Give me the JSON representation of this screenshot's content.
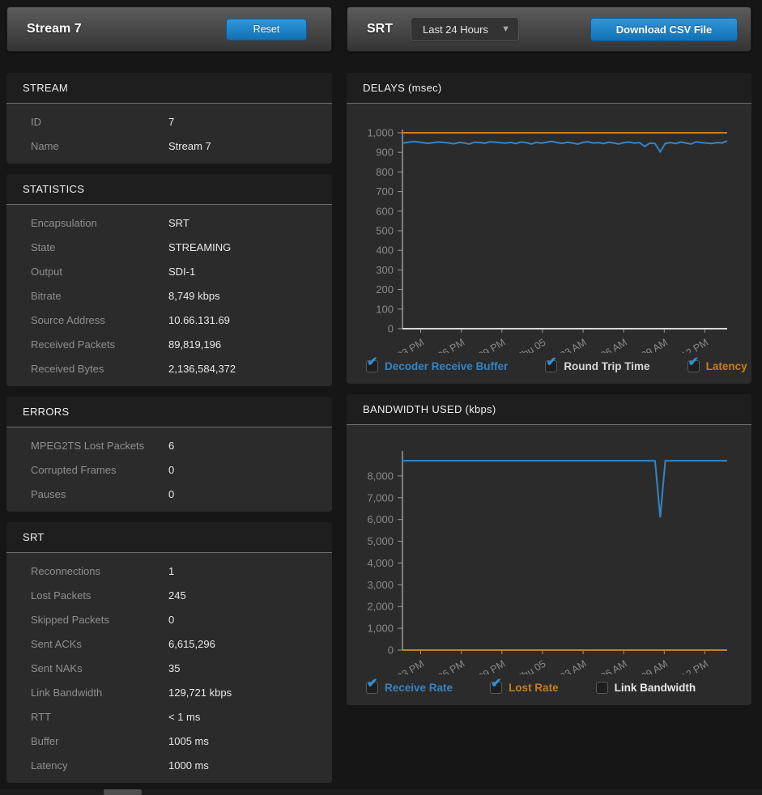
{
  "icons": {
    "checkbox_check": "✔",
    "caret_down": "▼"
  },
  "colors": {
    "page_background": "#161616",
    "panel_body": "#2b2b2b",
    "accent_blue": "#2f96dd",
    "series_blue": "#3584c4",
    "series_orange": "#c87d21",
    "series_white": "#d8d8d8",
    "axis": "#9a9a9a",
    "tick_label": "#8a8a8a"
  },
  "left_panel": {
    "header": {
      "title": "Stream 7",
      "reset_label": "Reset"
    },
    "sections": [
      {
        "title": "STREAM",
        "rows": [
          {
            "label": "ID",
            "value": "7"
          },
          {
            "label": "Name",
            "value": "Stream 7"
          }
        ]
      },
      {
        "title": "STATISTICS",
        "rows": [
          {
            "label": "Encapsulation",
            "value": "SRT"
          },
          {
            "label": "State",
            "value": "STREAMING"
          },
          {
            "label": "Output",
            "value": "SDI-1"
          },
          {
            "label": "Bitrate",
            "value": "8,749 kbps"
          },
          {
            "label": "Source Address",
            "value": "10.66.131.69"
          },
          {
            "label": "Received Packets",
            "value": "89,819,196"
          },
          {
            "label": "Received Bytes",
            "value": "2,136,584,372"
          }
        ]
      },
      {
        "title": "ERRORS",
        "rows": [
          {
            "label": "MPEG2TS Lost Packets",
            "value": "6"
          },
          {
            "label": "Corrupted Frames",
            "value": "0"
          },
          {
            "label": "Pauses",
            "value": "0"
          }
        ]
      },
      {
        "title": "SRT",
        "rows": [
          {
            "label": "Reconnections",
            "value": "1"
          },
          {
            "label": "Lost Packets",
            "value": "245"
          },
          {
            "label": "Skipped Packets",
            "value": "0"
          },
          {
            "label": "Sent ACKs",
            "value": "6,615,296"
          },
          {
            "label": "Sent NAKs",
            "value": "35"
          },
          {
            "label": "Link Bandwidth",
            "value": "129,721 kbps"
          },
          {
            "label": "RTT",
            "value": "< 1 ms"
          },
          {
            "label": "Buffer",
            "value": "1005 ms"
          },
          {
            "label": "Latency",
            "value": "1000 ms"
          }
        ]
      }
    ]
  },
  "right_panel": {
    "header": {
      "title": "SRT",
      "range_value": "Last 24 Hours",
      "download_label": "Download CSV File"
    }
  },
  "chart_data": [
    {
      "type": "line",
      "title": "DELAYS (msec)",
      "ylabel": "msec",
      "ylim": [
        0,
        1000
      ],
      "ytick_step": 100,
      "ytick_max": 1000,
      "grid": false,
      "legend_position": "bottom",
      "x_range": "Last 24 Hours",
      "x_tick_labels": [
        "03 PM",
        "06 PM",
        "09 PM",
        "Thu 05",
        "03 AM",
        "06 AM",
        "09 AM",
        "12 PM"
      ],
      "series": [
        {
          "name": "Decoder Receive Buffer",
          "color": "#3584c4",
          "checked": true,
          "values": [
            947,
            951,
            955,
            953,
            949,
            946,
            950,
            953,
            951,
            948,
            944,
            951,
            948,
            943,
            952,
            950,
            947,
            954,
            952,
            949,
            947,
            951,
            945,
            953,
            950,
            943,
            951,
            947,
            952,
            956,
            950,
            946,
            952,
            948,
            942,
            951,
            954,
            948,
            950,
            945,
            952,
            948,
            943,
            950,
            953,
            947,
            950,
            930,
            947,
            945,
            903,
            946,
            950,
            945,
            953,
            948,
            943,
            954,
            950,
            947,
            945,
            950,
            948,
            958
          ]
        },
        {
          "name": "Round Trip Time",
          "color": "#d8d8d8",
          "checked": true,
          "values_constant": 0
        },
        {
          "name": "Latency",
          "color": "#c87d21",
          "checked": true,
          "values_constant": 1000
        }
      ]
    },
    {
      "type": "line",
      "title": "BANDWIDTH USED (kbps)",
      "ylabel": "kbps",
      "ylim": [
        0,
        9000
      ],
      "ytick_step": 1000,
      "ytick_max": 8000,
      "grid": false,
      "legend_position": "bottom",
      "x_range": "Last 24 Hours",
      "x_tick_labels": [
        "03 PM",
        "06 PM",
        "09 PM",
        "Thu 05",
        "03 AM",
        "06 AM",
        "09 AM",
        "12 PM"
      ],
      "series": [
        {
          "name": "Receive Rate",
          "color": "#3584c4",
          "checked": true,
          "values": [
            8700,
            8700,
            8700,
            8700,
            8700,
            8700,
            8700,
            8700,
            8700,
            8700,
            8700,
            8700,
            8700,
            8700,
            8700,
            8700,
            8700,
            8700,
            8700,
            8700,
            8700,
            8700,
            8700,
            8700,
            8700,
            8700,
            8700,
            8700,
            8700,
            8700,
            8700,
            8700,
            8700,
            8700,
            8700,
            8700,
            8700,
            8700,
            8700,
            8700,
            8700,
            8700,
            8700,
            8700,
            8700,
            8700,
            8700,
            8700,
            8700,
            8700,
            6100,
            8700,
            8700,
            8700,
            8700,
            8700,
            8700,
            8700,
            8700,
            8700,
            8700,
            8700,
            8700,
            8700
          ]
        },
        {
          "name": "Lost Rate",
          "color": "#c87d21",
          "checked": true,
          "values_constant": 0
        },
        {
          "name": "Link Bandwidth",
          "color": "#e8e8e8",
          "checked": false,
          "values_constant": null
        }
      ]
    }
  ]
}
